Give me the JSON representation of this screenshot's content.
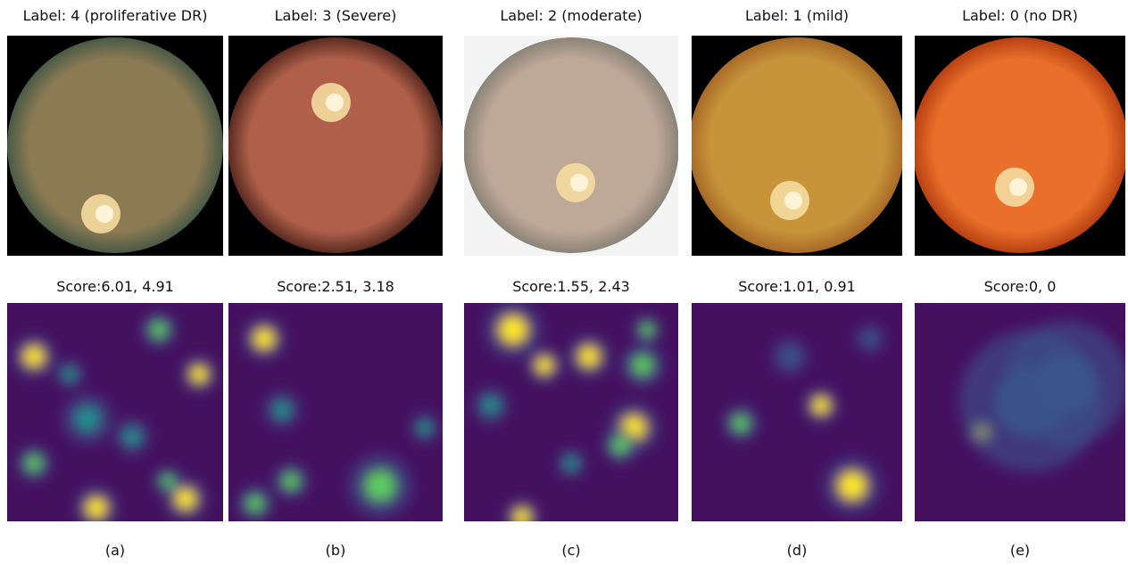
{
  "panels": [
    {
      "label": "Label:  4 (proliferative DR)",
      "score": "Score:6.01, 4.91",
      "caption": "(a)"
    },
    {
      "label": "Label:  3 (Severe)",
      "score": "Score:2.51, 3.18",
      "caption": "(b)"
    },
    {
      "label": "Label:  2 (moderate)",
      "score": "Score:1.55, 2.43",
      "caption": "(c)"
    },
    {
      "label": "Label:  1 (mild)",
      "score": "Score:1.01, 0.91",
      "caption": "(d)"
    },
    {
      "label": "Label:  0 (no DR)",
      "score": "Score:0, 0",
      "caption": "(e)"
    }
  ]
}
